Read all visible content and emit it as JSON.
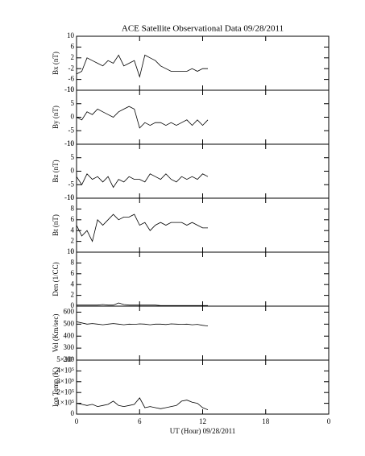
{
  "chart_data": [
    {
      "type": "line",
      "title": "ACE Satellite Observational Data   09/28/2011",
      "ylabel": "Bx (nT)",
      "color": "#000000",
      "xlim": [
        0,
        24
      ],
      "ylim": [
        -10,
        10
      ],
      "yticks": [
        -10,
        -6,
        -2,
        2,
        6,
        10
      ],
      "x": [
        0,
        0.5,
        1,
        1.5,
        2,
        2.5,
        3,
        3.5,
        4,
        4.5,
        5,
        5.5,
        6,
        6.5,
        7,
        7.5,
        8,
        8.5,
        9,
        9.5,
        10,
        10.5,
        11,
        11.5,
        12,
        12.5
      ],
      "values": [
        -4,
        -3,
        2,
        1,
        0,
        -1,
        1,
        0,
        3,
        -1,
        0,
        1,
        -5,
        3,
        2,
        1,
        -1,
        -2,
        -3,
        -3,
        -3,
        -3,
        -2,
        -3,
        -2,
        -2
      ]
    },
    {
      "type": "line",
      "ylabel": "By (nT)",
      "color": "#000000",
      "xlim": [
        0,
        24
      ],
      "ylim": [
        -10,
        10
      ],
      "yticks": [
        -10,
        -5,
        0,
        5,
        10
      ],
      "x": [
        0,
        0.5,
        1,
        1.5,
        2,
        2.5,
        3,
        3.5,
        4,
        4.5,
        5,
        5.5,
        6,
        6.5,
        7,
        7.5,
        8,
        8.5,
        9,
        9.5,
        10,
        10.5,
        11,
        11.5,
        12,
        12.5
      ],
      "values": [
        0,
        -1,
        2,
        1,
        3,
        2,
        1,
        0,
        2,
        3,
        4,
        3,
        -4,
        -2,
        -3,
        -2,
        -2,
        -3,
        -2,
        -3,
        -2,
        -1,
        -3,
        -1,
        -3,
        -1
      ]
    },
    {
      "type": "line",
      "ylabel": "Bz (nT)",
      "color": "#000000",
      "xlim": [
        0,
        24
      ],
      "ylim": [
        -10,
        10
      ],
      "yticks": [
        -10,
        -5,
        0,
        5,
        10
      ],
      "x": [
        0,
        0.5,
        1,
        1.5,
        2,
        2.5,
        3,
        3.5,
        4,
        4.5,
        5,
        5.5,
        6,
        6.5,
        7,
        7.5,
        8,
        8.5,
        9,
        9.5,
        10,
        10.5,
        11,
        11.5,
        12,
        12.5
      ],
      "values": [
        -2,
        -5,
        -1,
        -3,
        -2,
        -4,
        -2,
        -6,
        -3,
        -4,
        -2,
        -3,
        -3,
        -4,
        -1,
        -2,
        -3,
        -1,
        -3,
        -4,
        -2,
        -3,
        -2,
        -3,
        -1,
        -2
      ]
    },
    {
      "type": "line",
      "ylabel": "Bt (nT)",
      "color": "#000000",
      "xlim": [
        0,
        24
      ],
      "ylim": [
        0,
        10
      ],
      "yticks": [
        0,
        2,
        4,
        6,
        8,
        10
      ],
      "x": [
        0,
        0.5,
        1,
        1.5,
        2,
        2.5,
        3,
        3.5,
        4,
        4.5,
        5,
        5.5,
        6,
        6.5,
        7,
        7.5,
        8,
        8.5,
        9,
        9.5,
        10,
        10.5,
        11,
        11.5,
        12,
        12.5
      ],
      "values": [
        5,
        3,
        4,
        2,
        6,
        5,
        6,
        7,
        6,
        6.5,
        6.5,
        7,
        5,
        5.5,
        4,
        5,
        5.5,
        5,
        5.5,
        5.5,
        5.5,
        5,
        5.5,
        5,
        4.5,
        4.5
      ]
    },
    {
      "type": "line",
      "ylabel": "Den (1/CC)",
      "color": "#000000",
      "xlim": [
        0,
        24
      ],
      "ylim": [
        0,
        10
      ],
      "yticks": [
        0,
        2,
        4,
        6,
        8,
        10
      ],
      "x": [
        0,
        0.5,
        1,
        1.5,
        2,
        2.5,
        3,
        3.5,
        4,
        4.5,
        5,
        5.5,
        6,
        6.5,
        7,
        7.5,
        8,
        8.5,
        9,
        9.5,
        10,
        10.5,
        11,
        11.5,
        12,
        12.5
      ],
      "values": [
        0.2,
        0.2,
        0.2,
        0.2,
        0.2,
        0.3,
        0.2,
        0.2,
        0.6,
        0.3,
        0.2,
        0.2,
        0.2,
        0.2,
        0.2,
        0.2,
        0.1,
        0.1,
        0.1,
        0.1,
        0.1,
        0.1,
        0.1,
        0.1,
        0.1,
        0.1
      ]
    },
    {
      "type": "line",
      "ylabel": "Vel (Km/sec)",
      "color": "#000000",
      "xlim": [
        0,
        24
      ],
      "ylim": [
        200,
        650
      ],
      "yticks": [
        200,
        300,
        400,
        500,
        600
      ],
      "x": [
        0,
        0.5,
        1,
        1.5,
        2,
        2.5,
        3,
        3.5,
        4,
        4.5,
        5,
        5.5,
        6,
        6.5,
        7,
        7.5,
        8,
        8.5,
        9,
        9.5,
        10,
        10.5,
        11,
        11.5,
        12,
        12.5
      ],
      "values": [
        520,
        510,
        500,
        505,
        500,
        495,
        500,
        505,
        500,
        495,
        500,
        498,
        502,
        500,
        495,
        500,
        500,
        497,
        502,
        500,
        498,
        500,
        495,
        498,
        490,
        485
      ]
    },
    {
      "type": "line",
      "ylabel": "Ion Temp (K)",
      "xlabel": "UT (Hour)  09/28/2011",
      "color": "#000000",
      "xlim": [
        0,
        24
      ],
      "ylim": [
        0,
        500000
      ],
      "yticks": [
        0,
        {
          "value": 100000,
          "label": "1×10⁵"
        },
        {
          "value": 200000,
          "label": "2×10⁵"
        },
        {
          "value": 300000,
          "label": "3×10⁵"
        },
        {
          "value": 400000,
          "label": "4×10⁵"
        },
        {
          "value": 500000,
          "label": "5×10⁵"
        }
      ],
      "xticks": [
        0,
        6,
        12,
        18,
        {
          "value": 24,
          "label": "0"
        }
      ],
      "x": [
        0,
        0.5,
        1,
        1.5,
        2,
        2.5,
        3,
        3.5,
        4,
        4.5,
        5,
        5.5,
        6,
        6.5,
        7,
        7.5,
        8,
        8.5,
        9,
        9.5,
        10,
        10.5,
        11,
        11.5,
        12,
        12.5
      ],
      "values": [
        100000,
        90000,
        80000,
        90000,
        70000,
        80000,
        90000,
        120000,
        80000,
        70000,
        80000,
        90000,
        150000,
        60000,
        70000,
        60000,
        50000,
        60000,
        70000,
        80000,
        120000,
        130000,
        110000,
        100000,
        60000,
        40000
      ]
    }
  ]
}
